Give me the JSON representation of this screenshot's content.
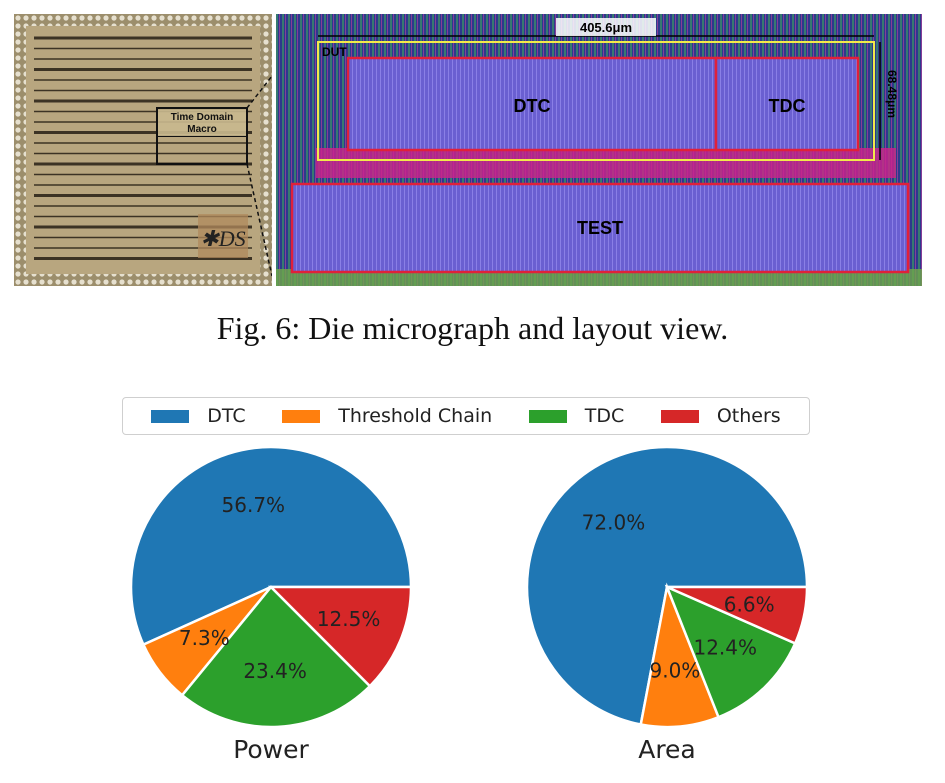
{
  "figure": {
    "caption": "Fig. 6: Die micrograph and layout view.",
    "micrograph": {
      "macro_label_line1": "Time Domain",
      "macro_label_line2": "Macro"
    },
    "layout": {
      "width_label": "405.6μm",
      "height_label": "68.48μm",
      "dut_label": "DUT",
      "blocks": [
        "DTC",
        "TDC",
        "TEST"
      ]
    }
  },
  "chart_data": [
    {
      "type": "pie",
      "title": "Power",
      "labels": [
        "DTC",
        "Threshold Chain",
        "TDC",
        "Others"
      ],
      "values": [
        56.7,
        7.3,
        23.4,
        12.5
      ],
      "value_labels": [
        "56.7%",
        "7.3%",
        "23.4%",
        "12.5%"
      ],
      "colors": [
        "#1f77b4",
        "#ff7f0e",
        "#2ca02c",
        "#d62728"
      ],
      "legend_position": "top"
    },
    {
      "type": "pie",
      "title": "Area",
      "labels": [
        "DTC",
        "Threshold Chain",
        "TDC",
        "Others"
      ],
      "values": [
        72.0,
        9.0,
        12.4,
        6.6
      ],
      "value_labels": [
        "72.0%",
        "9.0%",
        "12.4%",
        "6.6%"
      ],
      "colors": [
        "#1f77b4",
        "#ff7f0e",
        "#2ca02c",
        "#d62728"
      ],
      "legend_position": "top"
    }
  ],
  "legend": {
    "entries": [
      "DTC",
      "Threshold Chain",
      "TDC",
      "Others"
    ],
    "colors": [
      "#1f77b4",
      "#ff7f0e",
      "#2ca02c",
      "#d62728"
    ]
  }
}
